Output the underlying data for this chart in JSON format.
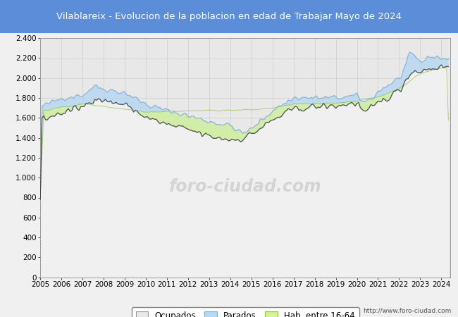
{
  "title": "Vilablareix - Evolucion de la poblacion en edad de Trabajar Mayo de 2024",
  "title_bg": "#5b8dd9",
  "title_color": "white",
  "xlim": [
    2005.0,
    2024.42
  ],
  "ylim": [
    0,
    2400
  ],
  "yticks": [
    0,
    200,
    400,
    600,
    800,
    1000,
    1200,
    1400,
    1600,
    1800,
    2000,
    2200,
    2400
  ],
  "ytick_labels": [
    "0",
    "200",
    "400",
    "600",
    "800",
    "1.000",
    "1.200",
    "1.400",
    "1.600",
    "1.800",
    "2.000",
    "2.200",
    "2.400"
  ],
  "xticks": [
    2005,
    2006,
    2007,
    2008,
    2009,
    2010,
    2011,
    2012,
    2013,
    2014,
    2015,
    2016,
    2017,
    2018,
    2019,
    2020,
    2021,
    2022,
    2023,
    2024
  ],
  "legend_labels": [
    "Ocupados",
    "Parados",
    "Hab. entre 16-64"
  ],
  "fill_ocupados_color": "#e8e8e8",
  "fill_parados_color": "#b8d8f0",
  "fill_hab_color": "#d4f0a0",
  "line_upper_color": "#7ab0d8",
  "line_lower_color": "#404040",
  "line_hab_color": "#90c040",
  "watermark": "http://www.foro-ciudad.com",
  "plot_bg": "#e8e8e8",
  "outer_bg": "#f0f0f0",
  "grid_color": "#cccccc",
  "title_fontsize": 9.5,
  "tick_fontsize": 7.5
}
